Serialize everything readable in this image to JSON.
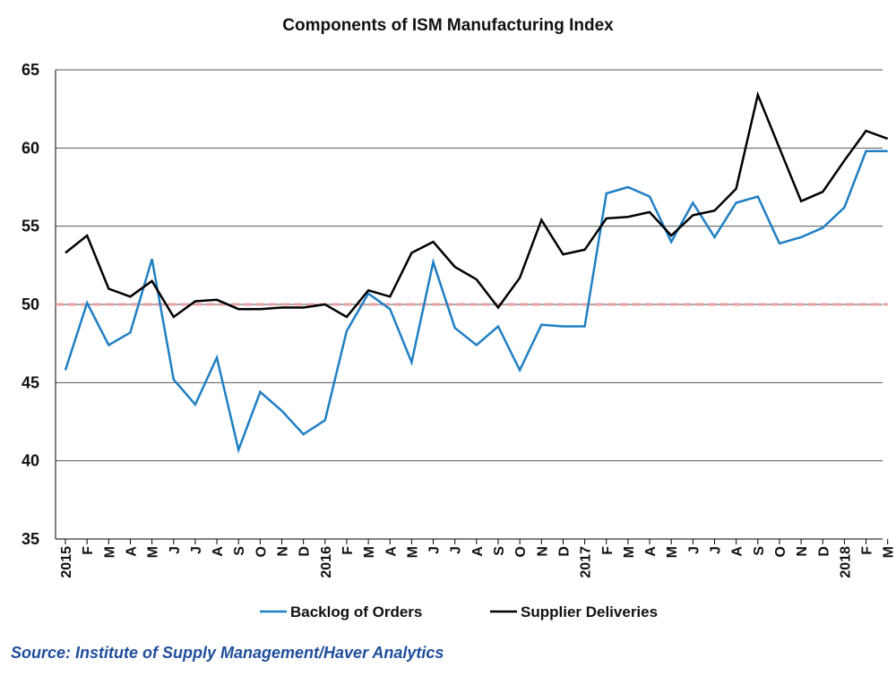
{
  "chart_data": {
    "type": "line",
    "title": "Components of ISM Manufacturing Index",
    "source": "Source: Institute of Supply Management/Haver Analytics",
    "categories": [
      "2015",
      "F",
      "M",
      "A",
      "M",
      "J",
      "J",
      "A",
      "S",
      "O",
      "N",
      "D",
      "2016",
      "F",
      "M",
      "A",
      "M",
      "J",
      "J",
      "A",
      "S",
      "O",
      "N",
      "D",
      "2017",
      "F",
      "M",
      "A",
      "M",
      "J",
      "J",
      "A",
      "S",
      "O",
      "N",
      "D",
      "2018",
      "F",
      "M"
    ],
    "ylim": [
      35,
      65
    ],
    "yticks": [
      35,
      40,
      45,
      50,
      55,
      60,
      65
    ],
    "grid": true,
    "legend_position": "bottom",
    "reference_line": {
      "value": 50,
      "color": "#e8a0a0"
    },
    "series": [
      {
        "name": "Backlog of Orders",
        "color": "#1f7fc4",
        "values": [
          45.8,
          50.1,
          47.4,
          48.2,
          52.9,
          45.2,
          43.6,
          46.6,
          40.7,
          44.4,
          43.2,
          41.7,
          42.6,
          48.3,
          50.7,
          49.7,
          46.3,
          52.7,
          48.5,
          47.4,
          48.6,
          45.8,
          48.7,
          48.6,
          48.6,
          57.1,
          57.5,
          56.9,
          54.0,
          56.5,
          54.3,
          56.5,
          56.9,
          53.9,
          54.3,
          54.9,
          56.2,
          59.8,
          59.8
        ]
      },
      {
        "name": "Supplier Deliveries",
        "color": "#000000",
        "values": [
          53.3,
          54.4,
          51.0,
          50.5,
          51.5,
          49.2,
          50.2,
          50.3,
          49.7,
          49.7,
          49.8,
          49.8,
          50.0,
          49.2,
          50.9,
          50.5,
          53.3,
          54.0,
          52.4,
          51.6,
          49.8,
          51.7,
          55.4,
          53.2,
          53.5,
          55.5,
          55.6,
          55.9,
          54.4,
          55.7,
          56.0,
          57.4,
          63.4,
          60.0,
          56.6,
          57.2,
          59.2,
          61.1,
          60.6
        ]
      }
    ]
  }
}
